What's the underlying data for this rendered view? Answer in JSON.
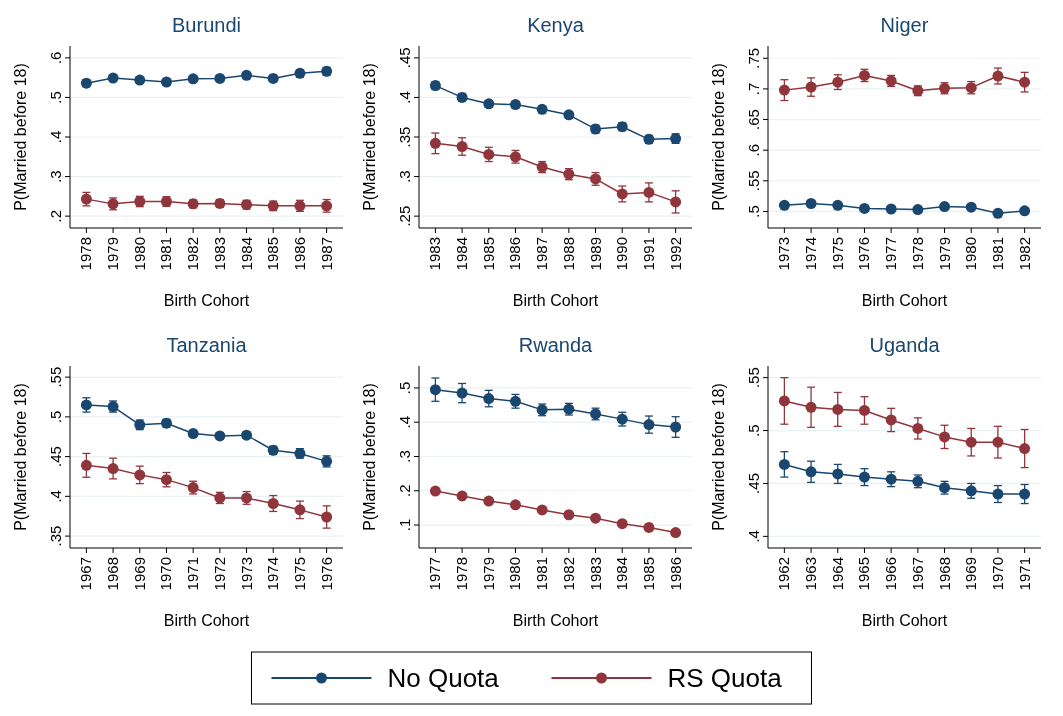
{
  "chart_data": [
    {
      "type": "line",
      "title": "Burundi",
      "xlabel": "Birth Cohort",
      "ylabel": "P(Married before 18)",
      "categories": [
        "1978",
        "1979",
        "1980",
        "1981",
        "1982",
        "1983",
        "1984",
        "1985",
        "1986",
        "1987"
      ],
      "ylim": [
        0.17,
        0.63
      ],
      "yticks": [
        {
          "value": 0.2,
          "label": ".2"
        },
        {
          "value": 0.3,
          "label": ".3"
        },
        {
          "value": 0.4,
          "label": ".4"
        },
        {
          "value": 0.5,
          "label": ".5"
        },
        {
          "value": 0.6,
          "label": ".6"
        }
      ],
      "grid": "y",
      "marker": "circle",
      "legend": "bottom",
      "series": [
        {
          "name": "No Quota",
          "color": "#1a476f",
          "values": [
            0.536,
            0.549,
            0.544,
            0.539,
            0.547,
            0.548,
            0.556,
            0.548,
            0.561,
            0.566
          ],
          "errors": [
            0.009,
            0.008,
            0.007,
            0.007,
            0.007,
            0.007,
            0.007,
            0.008,
            0.009,
            0.01
          ]
        },
        {
          "name": "RS Quota",
          "color": "#90353b",
          "values": [
            0.243,
            0.231,
            0.237,
            0.237,
            0.231,
            0.232,
            0.229,
            0.226,
            0.226,
            0.226
          ],
          "errors": [
            0.017,
            0.015,
            0.013,
            0.012,
            0.01,
            0.01,
            0.011,
            0.012,
            0.014,
            0.016
          ]
        }
      ]
    },
    {
      "type": "line",
      "title": "Kenya",
      "xlabel": "Birth Cohort",
      "ylabel": "P(Married before 18)",
      "categories": [
        "1983",
        "1984",
        "1985",
        "1986",
        "1987",
        "1988",
        "1989",
        "1990",
        "1991",
        "1992"
      ],
      "ylim": [
        0.235,
        0.465
      ],
      "yticks": [
        {
          "value": 0.25,
          "label": ".25"
        },
        {
          "value": 0.3,
          "label": ".3"
        },
        {
          "value": 0.35,
          "label": ".35"
        },
        {
          "value": 0.4,
          "label": ".4"
        },
        {
          "value": 0.45,
          "label": ".45"
        }
      ],
      "grid": "y",
      "marker": "circle",
      "series": [
        {
          "color": "#1a476f",
          "values": [
            0.415,
            0.4,
            0.392,
            0.391,
            0.385,
            0.378,
            0.36,
            0.363,
            0.347,
            0.348
          ],
          "errors": [
            0.005,
            0.005,
            0.004,
            0.004,
            0.004,
            0.004,
            0.005,
            0.005,
            0.005,
            0.006
          ]
        },
        {
          "color": "#90353b",
          "values": [
            0.342,
            0.338,
            0.328,
            0.325,
            0.312,
            0.303,
            0.297,
            0.278,
            0.28,
            0.268
          ],
          "errors": [
            0.013,
            0.011,
            0.009,
            0.008,
            0.007,
            0.007,
            0.008,
            0.01,
            0.012,
            0.014
          ]
        }
      ]
    },
    {
      "type": "line",
      "title": "Niger",
      "xlabel": "Birth Cohort",
      "ylabel": "P(Married before 18)",
      "categories": [
        "1973",
        "1974",
        "1975",
        "1976",
        "1977",
        "1978",
        "1979",
        "1980",
        "1981",
        "1982"
      ],
      "ylim": [
        0.473,
        0.77
      ],
      "yticks": [
        {
          "value": 0.5,
          "label": ".5"
        },
        {
          "value": 0.55,
          "label": ".55"
        },
        {
          "value": 0.6,
          "label": ".6"
        },
        {
          "value": 0.65,
          "label": ".65"
        },
        {
          "value": 0.7,
          "label": ".7"
        },
        {
          "value": 0.75,
          "label": ".75"
        }
      ],
      "grid": "y",
      "marker": "circle",
      "series": [
        {
          "color": "#1a476f",
          "values": [
            0.51,
            0.513,
            0.51,
            0.505,
            0.504,
            0.503,
            0.508,
            0.507,
            0.497,
            0.501
          ],
          "errors": [
            0.003,
            0.003,
            0.003,
            0.003,
            0.003,
            0.003,
            0.003,
            0.003,
            0.003,
            0.003
          ]
        },
        {
          "color": "#90353b",
          "values": [
            0.698,
            0.703,
            0.711,
            0.722,
            0.713,
            0.697,
            0.701,
            0.702,
            0.721,
            0.711
          ],
          "errors": [
            0.017,
            0.015,
            0.012,
            0.01,
            0.009,
            0.008,
            0.009,
            0.01,
            0.013,
            0.016
          ]
        }
      ]
    },
    {
      "type": "line",
      "title": "Tanzania",
      "xlabel": "Birth Cohort",
      "ylabel": "P(Married before 18)",
      "categories": [
        "1967",
        "1968",
        "1969",
        "1970",
        "1971",
        "1972",
        "1973",
        "1974",
        "1975",
        "1976"
      ],
      "ylim": [
        0.335,
        0.564
      ],
      "yticks": [
        {
          "value": 0.35,
          "label": ".35"
        },
        {
          "value": 0.4,
          "label": ".4"
        },
        {
          "value": 0.45,
          "label": ".45"
        },
        {
          "value": 0.5,
          "label": ".5"
        },
        {
          "value": 0.55,
          "label": ".55"
        }
      ],
      "grid": "y",
      "marker": "circle",
      "series": [
        {
          "color": "#1a476f",
          "values": [
            0.515,
            0.513,
            0.49,
            0.492,
            0.479,
            0.476,
            0.477,
            0.458,
            0.454,
            0.444
          ],
          "errors": [
            0.009,
            0.007,
            0.006,
            0.005,
            0.004,
            0.004,
            0.004,
            0.005,
            0.006,
            0.007
          ]
        },
        {
          "color": "#90353b",
          "values": [
            0.439,
            0.435,
            0.427,
            0.421,
            0.411,
            0.398,
            0.398,
            0.391,
            0.383,
            0.374
          ],
          "errors": [
            0.015,
            0.013,
            0.011,
            0.009,
            0.008,
            0.007,
            0.008,
            0.01,
            0.011,
            0.014
          ]
        }
      ]
    },
    {
      "type": "line",
      "title": "Rwanda",
      "xlabel": "Birth Cohort",
      "ylabel": "P(Married before 18)",
      "categories": [
        "1977",
        "1978",
        "1979",
        "1980",
        "1981",
        "1982",
        "1983",
        "1984",
        "1985",
        "1986"
      ],
      "ylim": [
        0.033,
        0.564
      ],
      "yticks": [
        {
          "value": 0.1,
          "label": ".1"
        },
        {
          "value": 0.2,
          "label": ".2"
        },
        {
          "value": 0.3,
          "label": ".3"
        },
        {
          "value": 0.4,
          "label": ".4"
        },
        {
          "value": 0.5,
          "label": ".5"
        }
      ],
      "grid": "y",
      "marker": "circle",
      "series": [
        {
          "color": "#1a476f",
          "values": [
            0.495,
            0.485,
            0.469,
            0.461,
            0.436,
            0.438,
            0.424,
            0.409,
            0.393,
            0.386
          ],
          "errors": [
            0.034,
            0.028,
            0.024,
            0.02,
            0.017,
            0.017,
            0.017,
            0.02,
            0.025,
            0.03
          ]
        },
        {
          "color": "#90353b",
          "values": [
            0.199,
            0.185,
            0.17,
            0.159,
            0.144,
            0.13,
            0.12,
            0.104,
            0.093,
            0.078
          ],
          "errors": [
            0.006,
            0.005,
            0.004,
            0.004,
            0.004,
            0.004,
            0.004,
            0.004,
            0.004,
            0.004
          ]
        }
      ]
    },
    {
      "type": "line",
      "title": "Uganda",
      "xlabel": "Birth Cohort",
      "ylabel": "P(Married before 18)",
      "categories": [
        "1962",
        "1963",
        "1964",
        "1965",
        "1966",
        "1967",
        "1968",
        "1969",
        "1970",
        "1971"
      ],
      "ylim": [
        0.389,
        0.561
      ],
      "yticks": [
        {
          "value": 0.4,
          "label": ".4"
        },
        {
          "value": 0.45,
          "label": ".45"
        },
        {
          "value": 0.5,
          "label": ".5"
        },
        {
          "value": 0.55,
          "label": ".55"
        }
      ],
      "grid": "y",
      "marker": "circle",
      "series": [
        {
          "color": "#1a476f",
          "values": [
            0.468,
            0.461,
            0.459,
            0.456,
            0.454,
            0.452,
            0.446,
            0.443,
            0.44,
            0.44
          ],
          "errors": [
            0.012,
            0.01,
            0.009,
            0.008,
            0.007,
            0.006,
            0.006,
            0.007,
            0.008,
            0.009
          ]
        },
        {
          "color": "#90353b",
          "values": [
            0.528,
            0.522,
            0.52,
            0.519,
            0.51,
            0.502,
            0.494,
            0.489,
            0.489,
            0.483
          ],
          "errors": [
            0.022,
            0.019,
            0.016,
            0.013,
            0.011,
            0.01,
            0.011,
            0.013,
            0.015,
            0.018
          ]
        }
      ]
    }
  ]
}
